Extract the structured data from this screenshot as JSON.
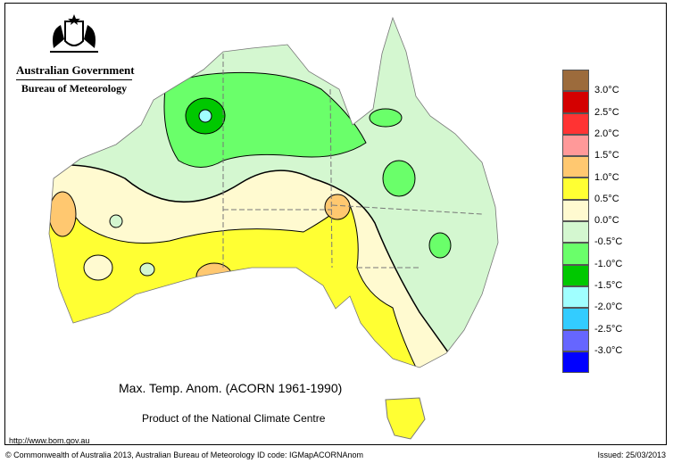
{
  "header": {
    "org_line1": "Australian Government",
    "org_line2": "Bureau of Meteorology"
  },
  "map": {
    "title": "Max. Temp. Anom. (ACORN 1961-1990)",
    "product": "Product of the National Climate Centre"
  },
  "legend": {
    "colors": [
      "#9c6b3c",
      "#d40000",
      "#ff3333",
      "#ff9999",
      "#ffc870",
      "#ffff33",
      "#fffad0",
      "#d4f7d0",
      "#6aff6a",
      "#00c800",
      "#a0ffff",
      "#33ccff",
      "#6666ff",
      "#0000ff"
    ],
    "labels": [
      "3.0°C",
      "2.5°C",
      "2.0°C",
      "1.5°C",
      "1.0°C",
      "0.5°C",
      "0.0°C",
      "-0.5°C",
      "-1.0°C",
      "-1.5°C",
      "-2.0°C",
      "-2.5°C",
      "-3.0°C"
    ]
  },
  "footer": {
    "url": "http://www.bom.gov.au",
    "copyright": "© Commonwealth of Australia 2013, Australian Bureau of Meteorology",
    "id_code": "ID code: IGMapACORNAnom",
    "issued": "Issued: 25/03/2013"
  }
}
